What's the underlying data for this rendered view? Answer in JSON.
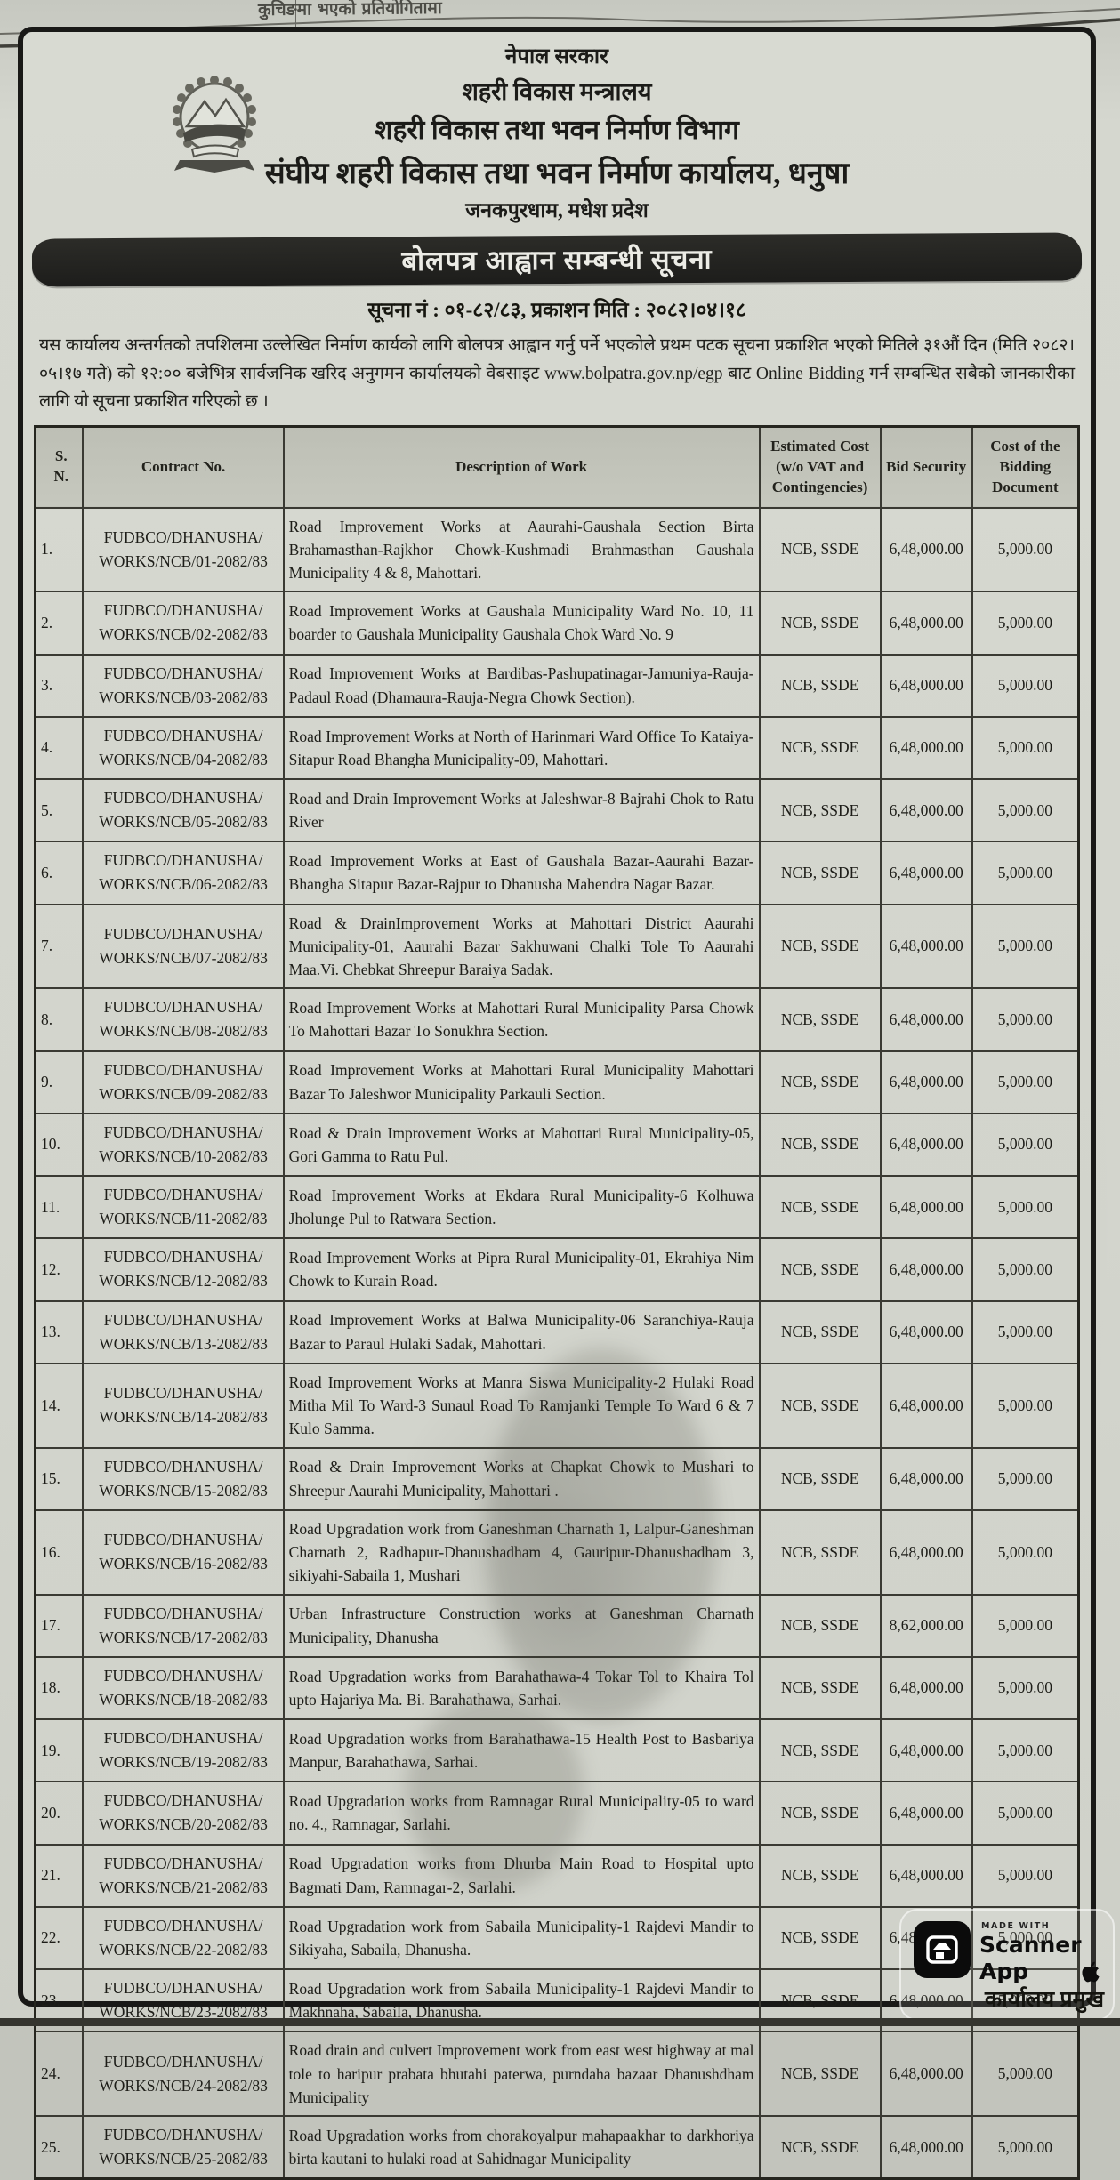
{
  "colors": {
    "paper": "#d3d5cd",
    "banner_bg": "#1d1d1b",
    "banner_text": "#ecece6"
  },
  "top_strip": {
    "fragment": "कुचिङमा भएको प्रतियोगितामा"
  },
  "header": {
    "government": "नेपाल सरकार",
    "ministry": "शहरी विकास मन्त्रालय",
    "department": "शहरी विकास तथा भवन निर्माण विभाग",
    "office": "संघीय शहरी विकास तथा भवन निर्माण कार्यालय, धनुषा",
    "location": "जनकपुरधाम, मधेश प्रदेश",
    "banner_title": "बोलपत्र आह्वान सम्बन्धी सूचना",
    "notice_line": "सूचना नं : ०१-८२/८३, प्रकाशन मिति : २०८२।०४।१८"
  },
  "body_paragraph": "यस कार्यालय अन्तर्गतको तपशिलमा उल्लेखित निर्माण कार्यको लागि बोलपत्र आह्वान गर्नु पर्ने भएकोले प्रथम पटक सूचना प्रकाशित भएको मितिले ३१औं दिन (मिति २०८२।०५।१७ गते) को १२:०० बजेभित्र सार्वजनिक खरिद अनुगमन कार्यालयको वेबसाइट www.bolpatra.gov.np/egp बाट Online Bidding गर्न सम्बन्धित सबैको जानकारीका लागि यो सूचना प्रकाशित गरिएको छ ।",
  "table": {
    "headers": [
      "S.\nN.",
      "Contract No.",
      "Description of Work",
      "Estimated Cost (w/o VAT and Contingencies)",
      "Bid Security",
      "Cost of the Bidding Document"
    ],
    "rows": [
      {
        "sn": "1.",
        "contract": "FUDBCO/DHANUSHA/ WORKS/NCB/01-2082/83",
        "description": "Road Improvement Works at Aaurahi-Gaushala Section Birta Brahamasthan-Rajkhor Chowk-Kushmadi Brahmasthan Gaushala Municipality 4 & 8, Mahottari.",
        "procurement_method": "NCB, SSDE",
        "bid_security": "6,48,000.00",
        "document_cost": "5,000.00"
      },
      {
        "sn": "2.",
        "contract": "FUDBCO/DHANUSHA/ WORKS/NCB/02-2082/83",
        "description": "Road Improvement Works at Gaushala Municipality Ward No. 10, 11 boarder to Gaushala Municipality Gaushala Chok Ward No. 9",
        "procurement_method": "NCB, SSDE",
        "bid_security": "6,48,000.00",
        "document_cost": "5,000.00"
      },
      {
        "sn": "3.",
        "contract": "FUDBCO/DHANUSHA/ WORKS/NCB/03-2082/83",
        "description": "Road Improvement Works at Bardibas-Pashupatinagar-Jamuniya-Rauja-Padaul Road (Dhamaura-Rauja-Negra Chowk Section).",
        "procurement_method": "NCB, SSDE",
        "bid_security": "6,48,000.00",
        "document_cost": "5,000.00"
      },
      {
        "sn": "4.",
        "contract": "FUDBCO/DHANUSHA/ WORKS/NCB/04-2082/83",
        "description": "Road Improvement Works at North of Harinmari Ward Office To Kataiya-Sitapur Road Bhangha Municipality-09, Mahottari.",
        "procurement_method": "NCB, SSDE",
        "bid_security": "6,48,000.00",
        "document_cost": "5,000.00"
      },
      {
        "sn": "5.",
        "contract": "FUDBCO/DHANUSHA/ WORKS/NCB/05-2082/83",
        "description": "Road and Drain Improvement Works at Jaleshwar-8 Bajrahi Chok to Ratu River",
        "procurement_method": "NCB, SSDE",
        "bid_security": "6,48,000.00",
        "document_cost": "5,000.00"
      },
      {
        "sn": "6.",
        "contract": "FUDBCO/DHANUSHA/ WORKS/NCB/06-2082/83",
        "description": "Road Improvement Works at East of Gaushala Bazar-Aaurahi Bazar-Bhangha Sitapur Bazar-Rajpur to Dhanusha Mahendra Nagar Bazar.",
        "procurement_method": "NCB, SSDE",
        "bid_security": "6,48,000.00",
        "document_cost": "5,000.00"
      },
      {
        "sn": "7.",
        "contract": "FUDBCO/DHANUSHA/ WORKS/NCB/07-2082/83",
        "description": "Road & DrainImprovement Works at Mahottari District Aaurahi Municipality-01, Aaurahi Bazar Sakhuwani Chalki Tole To Aaurahi Maa.Vi. Chebkat Shreepur Baraiya Sadak.",
        "procurement_method": "NCB, SSDE",
        "bid_security": "6,48,000.00",
        "document_cost": "5,000.00"
      },
      {
        "sn": "8.",
        "contract": "FUDBCO/DHANUSHA/ WORKS/NCB/08-2082/83",
        "description": "Road Improvement Works at Mahottari Rural Municipality Parsa Chowk To Mahottari Bazar To Sonukhra Section.",
        "procurement_method": "NCB, SSDE",
        "bid_security": "6,48,000.00",
        "document_cost": "5,000.00"
      },
      {
        "sn": "9.",
        "contract": "FUDBCO/DHANUSHA/ WORKS/NCB/09-2082/83",
        "description": "Road Improvement Works at Mahottari Rural Municipality Mahottari Bazar To Jaleshwor Municipality Parkauli Section.",
        "procurement_method": "NCB, SSDE",
        "bid_security": "6,48,000.00",
        "document_cost": "5,000.00"
      },
      {
        "sn": "10.",
        "contract": "FUDBCO/DHANUSHA/ WORKS/NCB/10-2082/83",
        "description": "Road & Drain Improvement Works at Mahottari Rural Municipality-05, Gori Gamma to Ratu Pul.",
        "procurement_method": "NCB, SSDE",
        "bid_security": "6,48,000.00",
        "document_cost": "5,000.00"
      },
      {
        "sn": "11.",
        "contract": "FUDBCO/DHANUSHA/ WORKS/NCB/11-2082/83",
        "description": "Road Improvement Works at Ekdara Rural Municipality-6 Kolhuwa Jholunge Pul to Ratwara Section.",
        "procurement_method": "NCB, SSDE",
        "bid_security": "6,48,000.00",
        "document_cost": "5,000.00"
      },
      {
        "sn": "12.",
        "contract": "FUDBCO/DHANUSHA/ WORKS/NCB/12-2082/83",
        "description": "Road Improvement Works at Pipra Rural Municipality-01, Ekrahiya Nim Chowk to Kurain Road.",
        "procurement_method": "NCB, SSDE",
        "bid_security": "6,48,000.00",
        "document_cost": "5,000.00"
      },
      {
        "sn": "13.",
        "contract": "FUDBCO/DHANUSHA/ WORKS/NCB/13-2082/83",
        "description": "Road Improvement Works at Balwa Municipality-06 Saranchiya-Rauja Bazar to Paraul Hulaki Sadak, Mahottari.",
        "procurement_method": "NCB, SSDE",
        "bid_security": "6,48,000.00",
        "document_cost": "5,000.00"
      },
      {
        "sn": "14.",
        "contract": "FUDBCO/DHANUSHA/ WORKS/NCB/14-2082/83",
        "description": "Road Improvement Works at Manra Siswa Municipality-2 Hulaki Road Mitha Mil To Ward-3 Sunaul Road To Ramjanki Temple To Ward 6 & 7 Kulo Samma.",
        "procurement_method": "NCB, SSDE",
        "bid_security": "6,48,000.00",
        "document_cost": "5,000.00"
      },
      {
        "sn": "15.",
        "contract": "FUDBCO/DHANUSHA/ WORKS/NCB/15-2082/83",
        "description": "Road & Drain Improvement Works at Chapkat Chowk to Mushari to Shreepur Aaurahi Municipality, Mahottari .",
        "procurement_method": "NCB, SSDE",
        "bid_security": "6,48,000.00",
        "document_cost": "5,000.00"
      },
      {
        "sn": "16.",
        "contract": "FUDBCO/DHANUSHA/ WORKS/NCB/16-2082/83",
        "description": "Road Upgradation work from Ganeshman Charnath 1, Lalpur-Ganeshman Charnath 2, Radhapur-Dhanushadham 4, Gauripur-Dhanushadham 3, sikiyahi-Sabaila 1, Mushari",
        "procurement_method": "NCB, SSDE",
        "bid_security": "6,48,000.00",
        "document_cost": "5,000.00"
      },
      {
        "sn": "17.",
        "contract": "FUDBCO/DHANUSHA/ WORKS/NCB/17-2082/83",
        "description": "Urban Infrastructure Construction works at Ganeshman Charnath Municipality, Dhanusha",
        "procurement_method": "NCB, SSDE",
        "bid_security": "8,62,000.00",
        "document_cost": "5,000.00"
      },
      {
        "sn": "18.",
        "contract": "FUDBCO/DHANUSHA/ WORKS/NCB/18-2082/83",
        "description": "Road Upgradation works from Barahathawa-4 Tokar Tol to Khaira Tol upto Hajariya Ma. Bi. Barahathawa, Sarhai.",
        "procurement_method": "NCB, SSDE",
        "bid_security": "6,48,000.00",
        "document_cost": "5,000.00"
      },
      {
        "sn": "19.",
        "contract": "FUDBCO/DHANUSHA/ WORKS/NCB/19-2082/83",
        "description": "Road Upgradation works from Barahathawa-15 Health Post to Basbariya Manpur, Barahathawa, Sarhai.",
        "procurement_method": "NCB, SSDE",
        "bid_security": "6,48,000.00",
        "document_cost": "5,000.00"
      },
      {
        "sn": "20.",
        "contract": "FUDBCO/DHANUSHA/ WORKS/NCB/20-2082/83",
        "description": "Road Upgradation works from Ramnagar Rural Municipality-05 to ward no. 4., Ramnagar, Sarlahi.",
        "procurement_method": "NCB, SSDE",
        "bid_security": "6,48,000.00",
        "document_cost": "5,000.00"
      },
      {
        "sn": "21.",
        "contract": "FUDBCO/DHANUSHA/ WORKS/NCB/21-2082/83",
        "description": "Road Upgradation works from Dhurba Main Road to Hospital upto Bagmati Dam, Ramnagar-2, Sarlahi.",
        "procurement_method": "NCB, SSDE",
        "bid_security": "6,48,000.00",
        "document_cost": "5,000.00"
      },
      {
        "sn": "22.",
        "contract": "FUDBCO/DHANUSHA/ WORKS/NCB/22-2082/83",
        "description": "Road Upgradation work from Sabaila Municipality-1 Rajdevi Mandir to Sikiyaha, Sabaila, Dhanusha.",
        "procurement_method": "NCB, SSDE",
        "bid_security": "6,48,000.00",
        "document_cost": "5,000.00"
      },
      {
        "sn": "23.",
        "contract": "FUDBCO/DHANUSHA/ WORKS/NCB/23-2082/83",
        "description": "Road Upgradation work from Sabaila Municipality-1 Rajdevi Mandir to Makhnaha, Sabaila, Dhanusha.",
        "procurement_method": "NCB, SSDE",
        "bid_security": "6,48,000.00",
        "document_cost": "5,000.00"
      },
      {
        "sn": "24.",
        "contract": "FUDBCO/DHANUSHA/ WORKS/NCB/24-2082/83",
        "description": "Road drain and culvert Improvement work from east west highway at mal tole to haripur prabata bhutahi paterwa, purndaha bazaar Dhanushdham Municipality",
        "procurement_method": "NCB, SSDE",
        "bid_security": "6,48,000.00",
        "document_cost": "5,000.00"
      },
      {
        "sn": "25.",
        "contract": "FUDBCO/DHANUSHA/ WORKS/NCB/25-2082/83",
        "description": "Road Upgradation works from chorakoyalpur mahapaakhar to darkhoriya birta kautani to hulaki road at Sahidnagar Municipality",
        "procurement_method": "NCB, SSDE",
        "bid_security": "6,48,000.00",
        "document_cost": "5,000.00"
      }
    ]
  },
  "footer": {
    "signature": "कार्यालय प्रमुख"
  },
  "watermark": {
    "made_with": "MADE WITH",
    "app_name": "Scanner App"
  }
}
